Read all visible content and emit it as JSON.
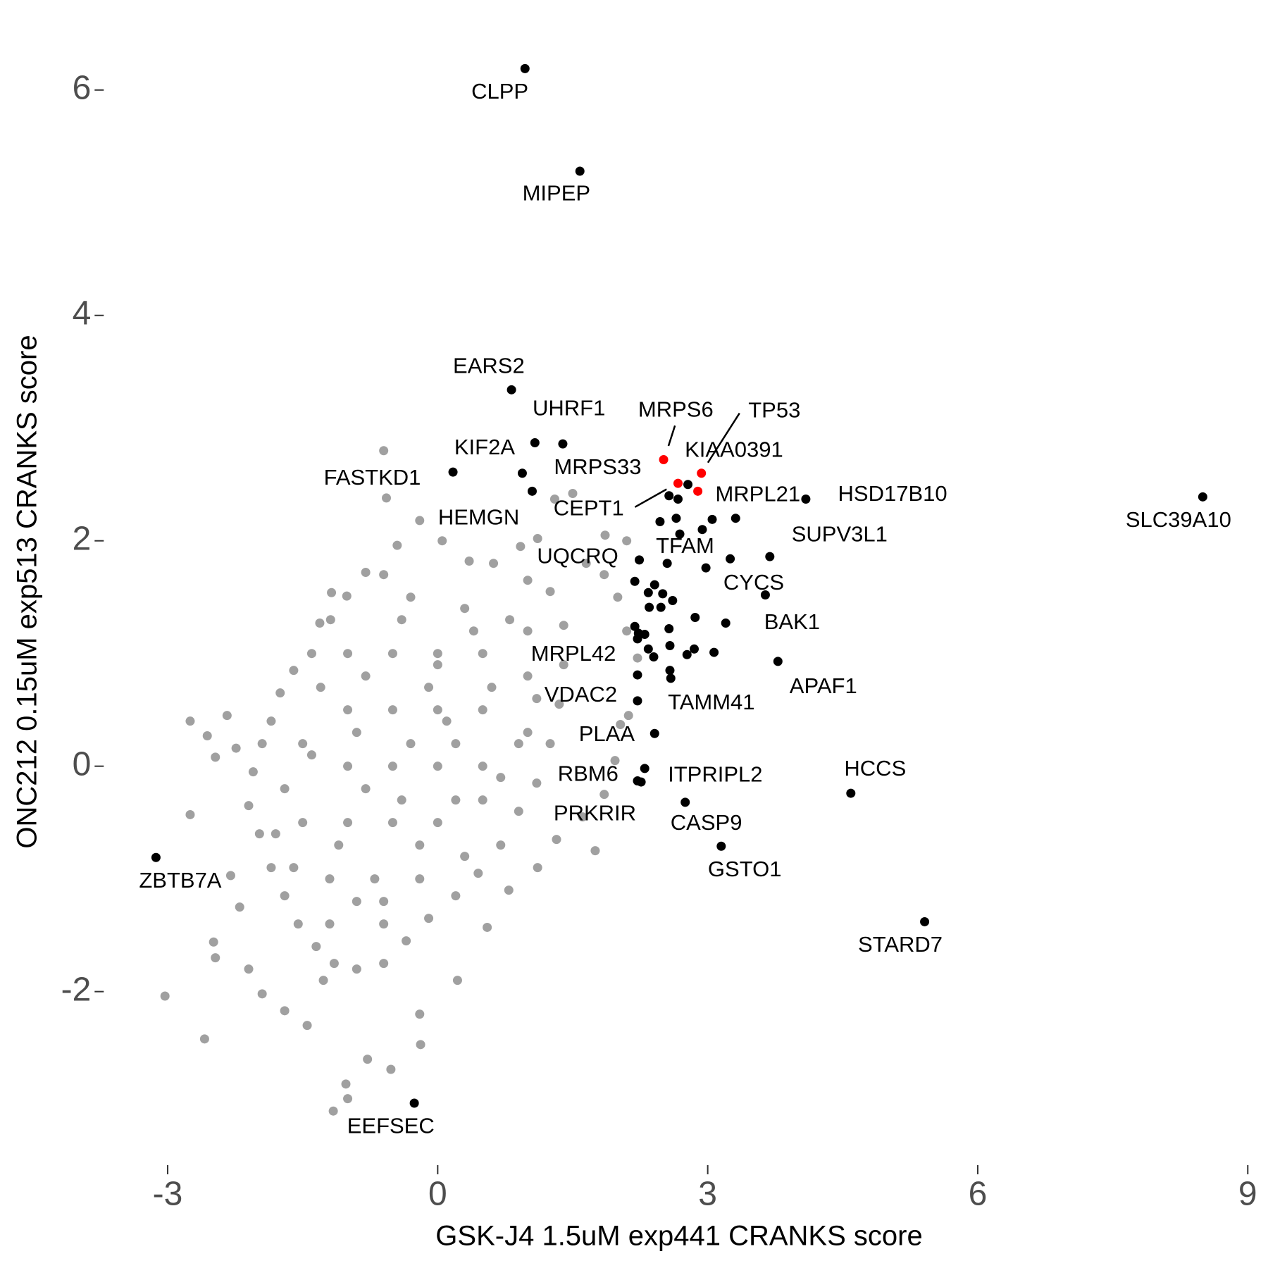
{
  "chart_data": {
    "type": "scatter",
    "x_label": "GSK-J4 1.5uM exp441 CRANKS score",
    "y_label": "ONC212 0.15uM exp513 CRANKS score",
    "xlim": [
      -3.71,
      9.08
    ],
    "ylim": [
      -3.54,
      6.63
    ],
    "xticks": [
      -3,
      0,
      3,
      6,
      9
    ],
    "yticks": [
      -2,
      0,
      2,
      4,
      6
    ],
    "grid": false,
    "series": [
      {
        "color": "#a0a0a0",
        "x": [
          -3.03,
          -2.59,
          -2.75,
          -2.75,
          -2.56,
          -2.47,
          -2.34,
          -2.24,
          -2.49,
          -2.47,
          -2.3,
          -2.2,
          -2.1,
          -1.95,
          -1.7,
          -1.45,
          -1.27,
          -1.16,
          -1.02,
          -1.0,
          -0.78,
          -0.52,
          -0.19,
          -0.2,
          0.22,
          0.55,
          0.79,
          1.11,
          1.32,
          1.61,
          1.75,
          1.85,
          1.97,
          2.03,
          2.12,
          2.22,
          2.1,
          2.0,
          1.85,
          1.65,
          1.86,
          2.1,
          1.5,
          1.3,
          1.11,
          0.92,
          0.62,
          0.35,
          0.05,
          -0.2,
          -0.45,
          -0.6,
          -0.8,
          -1.01,
          -1.18,
          -0.6,
          -0.57,
          -1.19,
          -1.31,
          -1.4,
          -1.6,
          -1.75,
          -1.85,
          -1.95,
          -2.05,
          -2.1,
          -1.98,
          -1.85,
          -1.7,
          -1.55,
          -1.35,
          -1.15,
          -0.9,
          -0.6,
          -0.35,
          -0.1,
          0.2,
          0.45,
          0.7,
          0.9,
          1.1,
          1.25,
          1.35,
          1.4,
          1.4,
          1.25,
          1.0,
          -1.0,
          -0.5,
          0.0,
          0.5,
          -1.0,
          -0.5,
          0.0,
          0.5,
          1.0,
          -1.2,
          -0.7,
          -0.2,
          0.3,
          -1.5,
          -1.5,
          -1.0,
          -0.5,
          0.0,
          0.5,
          1.0,
          -1.0,
          -0.5,
          0.0,
          0.5,
          1.0,
          -0.3,
          0.3,
          -1.2,
          -0.6,
          -1.7,
          0.8,
          -0.8,
          -0.3,
          0.2,
          0.7,
          -1.3,
          -0.8,
          0.2,
          -0.2,
          -0.9,
          -1.6,
          -1.1,
          -0.4,
          0.1,
          0.6,
          1.1,
          -1.4,
          -0.9,
          -0.1,
          0.4,
          0.9,
          -0.6,
          0.0,
          -1.8,
          -0.4
        ],
        "values": [
          -2.04,
          -2.42,
          -0.43,
          0.4,
          0.27,
          0.08,
          0.45,
          0.16,
          -1.56,
          -1.7,
          -0.97,
          -1.25,
          -1.8,
          -2.02,
          -2.17,
          -2.3,
          -1.9,
          -3.06,
          -2.82,
          -2.95,
          -2.6,
          -2.69,
          -2.47,
          -2.2,
          -1.9,
          -1.43,
          -1.1,
          -0.9,
          -0.65,
          -0.45,
          -0.75,
          -0.25,
          0.05,
          0.37,
          0.45,
          0.96,
          1.2,
          1.5,
          1.7,
          1.8,
          2.05,
          2.0,
          2.42,
          2.37,
          2.02,
          1.95,
          1.8,
          1.82,
          2.0,
          2.18,
          1.96,
          1.7,
          1.72,
          1.51,
          1.54,
          2.8,
          2.38,
          1.3,
          1.27,
          1.0,
          0.85,
          0.65,
          0.4,
          0.2,
          -0.05,
          -0.35,
          -0.6,
          -0.9,
          -1.15,
          -1.4,
          -1.6,
          -1.75,
          -1.8,
          -1.75,
          -1.55,
          -1.35,
          -1.15,
          -0.95,
          -0.7,
          -0.4,
          -0.15,
          0.2,
          0.55,
          0.9,
          1.25,
          1.55,
          1.65,
          -0.5,
          -0.5,
          -0.5,
          -0.3,
          0.0,
          0.0,
          0.0,
          0.0,
          0.3,
          -1.0,
          -1.0,
          -1.0,
          -0.8,
          -0.5,
          0.2,
          0.5,
          0.5,
          0.5,
          0.5,
          0.8,
          1.0,
          1.0,
          1.0,
          1.0,
          1.2,
          1.5,
          1.4,
          -1.4,
          -1.4,
          -0.2,
          1.3,
          -0.2,
          0.2,
          0.2,
          -0.1,
          0.7,
          0.8,
          -0.3,
          -0.7,
          -1.2,
          -0.9,
          -0.7,
          -0.3,
          0.4,
          0.7,
          0.6,
          0.1,
          0.3,
          0.7,
          1.2,
          0.2,
          -1.2,
          0.9,
          -0.6,
          1.3
        ]
      },
      {
        "color": "#000000",
        "x": [
          0.97,
          1.58,
          0.82,
          1.08,
          1.39,
          0.17,
          0.94,
          1.05,
          8.5,
          4.09,
          2.57,
          3.69,
          2.55,
          2.24,
          3.25,
          3.64,
          3.78,
          2.22,
          2.59,
          2.22,
          2.41,
          2.22,
          2.3,
          2.26,
          2.75,
          3.15,
          4.59,
          5.41,
          -3.13,
          -0.26,
          2.78,
          2.67,
          2.47,
          2.65,
          2.94,
          3.05,
          2.69,
          2.98,
          2.19,
          2.41,
          2.34,
          2.5,
          2.35,
          2.48,
          2.61,
          2.86,
          3.2,
          2.19,
          2.23,
          2.3,
          2.34,
          2.58,
          2.77,
          2.85,
          3.07,
          2.4,
          2.22,
          2.58,
          2.57,
          3.31
        ],
        "values": [
          6.19,
          5.28,
          3.34,
          2.87,
          2.86,
          2.61,
          2.6,
          2.44,
          2.39,
          2.37,
          2.4,
          1.86,
          1.8,
          1.83,
          1.84,
          1.52,
          0.93,
          1.13,
          0.78,
          0.58,
          0.29,
          -0.13,
          -0.02,
          -0.14,
          -0.32,
          -0.71,
          -0.24,
          -1.38,
          -0.81,
          -2.99,
          2.5,
          2.37,
          2.17,
          2.2,
          2.1,
          2.19,
          2.06,
          1.76,
          1.64,
          1.61,
          1.54,
          1.53,
          1.41,
          1.41,
          1.47,
          1.32,
          1.27,
          1.24,
          1.18,
          1.17,
          1.04,
          1.07,
          0.99,
          1.04,
          1.01,
          0.97,
          0.81,
          0.85,
          1.22,
          2.2
        ],
        "labels": [
          "CLPP",
          "MIPEP",
          "EARS2",
          "UHRF1",
          "MRPS33",
          "KIF2A",
          "FASTKD1",
          "HEMGN",
          "SLC39A10",
          "HSD17B10",
          "CEPT1",
          "SUPV3L1",
          "TFAM",
          "UQCRQ",
          "CYCS",
          "BAK1",
          "APAF1",
          "MRPL42",
          "TAMM41",
          "VDAC2",
          "PLAA",
          "RBM6",
          "ITPRIPL2",
          "PRKRIR",
          "CASP9",
          "GSTO1",
          "HCCS",
          "STARD7",
          "ZBTB7A",
          "EEFSEC",
          null,
          null,
          null,
          null,
          null,
          null,
          null,
          null,
          null,
          null,
          null,
          null,
          null,
          null,
          null,
          null,
          null,
          null,
          null,
          null,
          null,
          null,
          null,
          null,
          null,
          null,
          null,
          null,
          null,
          null
        ]
      },
      {
        "color": "#ff0000",
        "x": [
          2.51,
          2.93,
          2.67,
          2.89
        ],
        "values": [
          2.72,
          2.6,
          2.51,
          2.44
        ],
        "labels": [
          "MRPS6",
          "TP53",
          "KIAA0391",
          "MRPL21"
        ]
      }
    ]
  }
}
